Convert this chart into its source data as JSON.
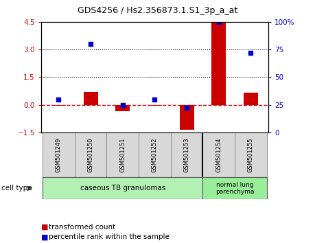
{
  "title": "GDS4256 / Hs2.356873.1.S1_3p_a_at",
  "samples": [
    "GSM501249",
    "GSM501250",
    "GSM501251",
    "GSM501252",
    "GSM501253",
    "GSM501254",
    "GSM501255"
  ],
  "red_values": [
    -0.05,
    0.7,
    -0.35,
    -0.05,
    -1.35,
    4.45,
    0.65
  ],
  "blue_percentiles": [
    30,
    80,
    25,
    30,
    22,
    100,
    72
  ],
  "ylim_left": [
    -1.5,
    4.5
  ],
  "ylim_right": [
    0,
    100
  ],
  "yticks_left": [
    -1.5,
    0,
    1.5,
    3.0,
    4.5
  ],
  "yticks_right": [
    0,
    25,
    50,
    75,
    100
  ],
  "bar_color": "#cc0000",
  "square_color": "#0000cc",
  "bg_color": "#ffffff",
  "group1_label": "caseous TB granulomas",
  "group2_label": "normal lung\nparenchyma",
  "group1_indices": [
    0,
    1,
    2,
    3,
    4
  ],
  "group2_indices": [
    5,
    6
  ],
  "group1_color": "#b3f0b3",
  "group2_color": "#99ee99",
  "cell_type_label": "cell type",
  "legend1_label": "transformed count",
  "legend2_label": "percentile rank within the sample",
  "bar_width": 0.45,
  "square_size": 25,
  "sample_box_color": "#d8d8d8",
  "sample_box_edge": "#888888"
}
